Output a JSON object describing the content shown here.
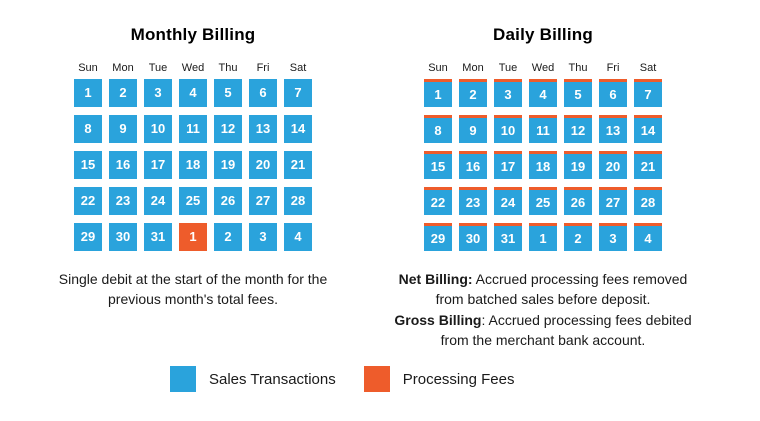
{
  "colors": {
    "sales_blue": "#2AA3DC",
    "fees_orange": "#EE5C2B"
  },
  "panels": [
    {
      "title": "Monthly Billing",
      "day_headers": [
        "Sun",
        "Mon",
        "Tue",
        "Wed",
        "Thu",
        "Fri",
        "Sat"
      ],
      "cells": [
        1,
        2,
        3,
        4,
        5,
        6,
        7,
        8,
        9,
        10,
        11,
        12,
        13,
        14,
        15,
        16,
        17,
        18,
        19,
        20,
        21,
        22,
        23,
        24,
        25,
        26,
        27,
        28,
        29,
        30,
        31,
        1,
        2,
        3,
        4
      ],
      "fee_cells": [
        31
      ],
      "striped": false,
      "caption_lines": [
        [
          {
            "bold": false,
            "text": "Single debit at the start of the month for the"
          }
        ],
        [
          {
            "bold": false,
            "text": "previous month's total fees."
          }
        ]
      ]
    },
    {
      "title": "Daily Billing",
      "day_headers": [
        "Sun",
        "Mon",
        "Tue",
        "Wed",
        "Thu",
        "Fri",
        "Sat"
      ],
      "cells": [
        1,
        2,
        3,
        4,
        5,
        6,
        7,
        8,
        9,
        10,
        11,
        12,
        13,
        14,
        15,
        16,
        17,
        18,
        19,
        20,
        21,
        22,
        23,
        24,
        25,
        26,
        27,
        28,
        29,
        30,
        31,
        1,
        2,
        3,
        4
      ],
      "fee_cells": [],
      "striped": true,
      "caption_lines": [
        [
          {
            "bold": true,
            "text": "Net Billing:"
          },
          {
            "bold": false,
            "text": " Accrued processing fees removed"
          }
        ],
        [
          {
            "bold": false,
            "text": "from batched sales before deposit."
          }
        ],
        [
          {
            "bold": true,
            "text": "Gross Billing"
          },
          {
            "bold": false,
            "text": ": Accrued processing fees debited"
          }
        ],
        [
          {
            "bold": false,
            "text": "from the merchant bank account."
          }
        ]
      ]
    }
  ],
  "legend": {
    "items": [
      {
        "label": "Sales Transactions",
        "color_key": "sales_blue"
      },
      {
        "label": "Processing Fees",
        "color_key": "fees_orange"
      }
    ]
  }
}
